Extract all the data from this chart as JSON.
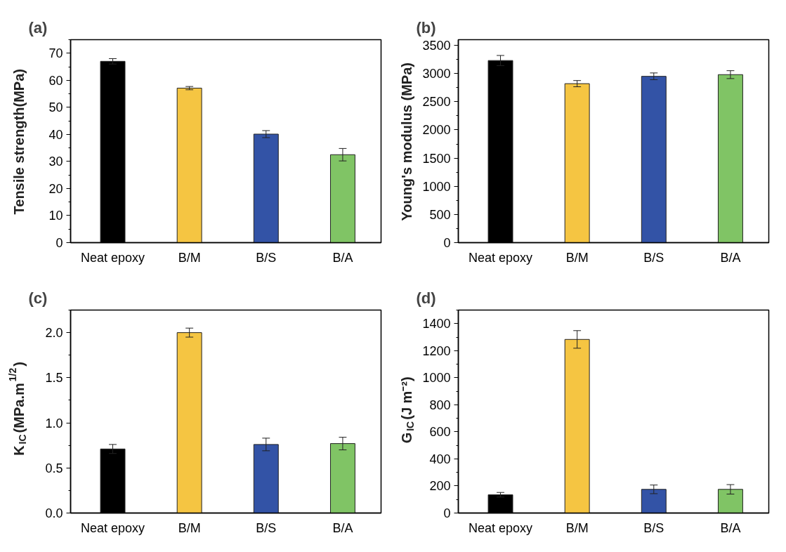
{
  "chart_data": [
    {
      "type": "bar",
      "title": "(a)",
      "ylabel": "Tensile strength(MPa)",
      "categories": [
        "Neat epoxy",
        "B/M",
        "B/S",
        "B/A"
      ],
      "values": [
        67,
        57.1,
        40.1,
        32.5
      ],
      "errors": [
        1,
        0.6,
        1.3,
        2.3
      ],
      "colors": [
        "#000000",
        "#f5c542",
        "#3353a6",
        "#80c465"
      ],
      "ylim": [
        0,
        75
      ],
      "yticks": [
        0,
        10,
        20,
        30,
        40,
        50,
        60,
        70
      ],
      "grid": false
    },
    {
      "type": "bar",
      "title": "(b)",
      "ylabel": "Young's modulus (MPa)",
      "categories": [
        "Neat epoxy",
        "B/M",
        "B/S",
        "B/A"
      ],
      "values": [
        3230,
        2820,
        2950,
        2980
      ],
      "errors": [
        90,
        55,
        60,
        70
      ],
      "colors": [
        "#000000",
        "#f5c542",
        "#3353a6",
        "#80c465"
      ],
      "ylim": [
        0,
        3600
      ],
      "yticks": [
        0,
        500,
        1000,
        1500,
        2000,
        2500,
        3000,
        3500
      ],
      "grid": false
    },
    {
      "type": "bar",
      "title": "(c)",
      "ylabel": "K$_{IC}$(MPa.m$^{1/2}$)",
      "categories": [
        "Neat epoxy",
        "B/M",
        "B/S",
        "B/A"
      ],
      "values": [
        0.71,
        2.0,
        0.76,
        0.77
      ],
      "errors": [
        0.05,
        0.05,
        0.07,
        0.07
      ],
      "colors": [
        "#000000",
        "#f5c542",
        "#3353a6",
        "#80c465"
      ],
      "ylim": [
        0,
        2.25
      ],
      "yticks": [
        {
          "value": 0,
          "label": "0.0"
        },
        {
          "value": 0.5,
          "label": "0.5"
        },
        {
          "value": 1,
          "label": "1.0"
        },
        {
          "value": 1.5,
          "label": "1.5"
        },
        {
          "value": 2,
          "label": "2.0"
        }
      ],
      "grid": false
    },
    {
      "type": "bar",
      "title": "(d)",
      "ylabel": "G$_{IC}$(J m⁻²)",
      "categories": [
        "Neat epoxy",
        "B/M",
        "B/S",
        "B/A"
      ],
      "values": [
        135,
        1283,
        175,
        175
      ],
      "errors": [
        17,
        65,
        32,
        35
      ],
      "colors": [
        "#000000",
        "#f5c542",
        "#3353a6",
        "#80c465"
      ],
      "ylim": [
        0,
        1500
      ],
      "yticks": [
        0,
        200,
        400,
        600,
        800,
        1000,
        1200,
        1400
      ],
      "grid": false
    }
  ]
}
